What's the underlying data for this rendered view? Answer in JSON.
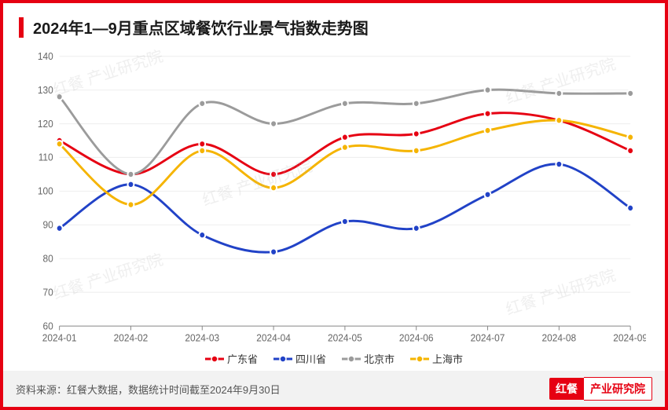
{
  "title": "2024年1—9月重点区域餐饮行业景气指数走势图",
  "source_text": "资料来源：红餐大数据，数据统计时间截至2024年9月30日",
  "brand_logo": "红餐",
  "brand_text": "产业研究院",
  "watermark_text": "红餐 产业研究院",
  "chart": {
    "type": "line",
    "background_color": "#ffffff",
    "grid_color": "#efefef",
    "axis_color": "#888888",
    "label_color": "#666666",
    "label_fontsize": 12,
    "categories": [
      "2024-01",
      "2024-02",
      "2024-03",
      "2024-04",
      "2024-05",
      "2024-06",
      "2024-07",
      "2024-08",
      "2024-09"
    ],
    "ylim": [
      60,
      140
    ],
    "ytick_step": 10,
    "marker_radius": 4,
    "line_width": 2.8,
    "series": [
      {
        "name": "广东省",
        "color": "#e60012",
        "values": [
          115,
          105,
          114,
          105,
          116,
          117,
          123,
          121,
          112
        ]
      },
      {
        "name": "四川省",
        "color": "#2142c7",
        "values": [
          89,
          102,
          87,
          82,
          91,
          89,
          99,
          108,
          95
        ]
      },
      {
        "name": "北京市",
        "color": "#9b9b9b",
        "values": [
          128,
          105,
          126,
          120,
          126,
          126,
          130,
          129,
          129
        ]
      },
      {
        "name": "上海市",
        "color": "#f5b400",
        "values": [
          114,
          96,
          112,
          101,
          113,
          112,
          118,
          121,
          116
        ]
      }
    ]
  },
  "colors": {
    "border": "#e60012",
    "title_accent": "#e60012",
    "title_text": "#1a1a1a",
    "footer_bg": "#f2f2f2",
    "footer_text": "#555555"
  }
}
